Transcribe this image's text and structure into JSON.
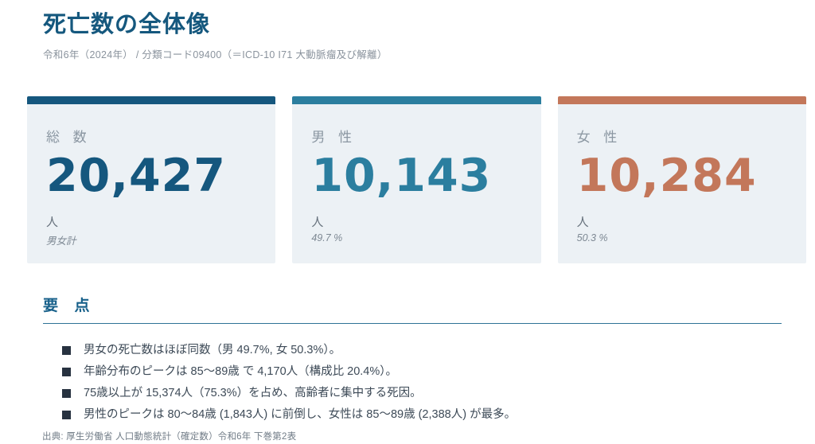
{
  "page": {
    "title": "死亡数の全体像",
    "subtitle": "令和6年（2024年） / 分類コード09400（＝ICD-10 I71 大動脈瘤及び解離）",
    "source": "出典: 厚生労働省 人口動態統計（確定数）令和6年 下巻第2表"
  },
  "theme": {
    "title_color": "#15587E",
    "rule_color": "#2E7396",
    "card_background": "#ECF1F5",
    "bullet_color": "#273240"
  },
  "cards": [
    {
      "label": "総 数",
      "value": "20,427",
      "unit": "人",
      "note": "男女計",
      "accent": "#15577E"
    },
    {
      "label": "男 性",
      "value": "10,143",
      "unit": "人",
      "note": "49.7 %",
      "accent": "#2B7E9F"
    },
    {
      "label": "女 性",
      "value": "10,284",
      "unit": "人",
      "note": "50.3 %",
      "accent": "#C3775A"
    }
  ],
  "key_points": {
    "heading": "要 点",
    "items": [
      "男女の死亡数はほぼ同数（男 49.7%, 女 50.3%）。",
      "年齢分布のピークは 85〜89歳 で 4,170人（構成比 20.4%）。",
      "75歳以上が 15,374人（75.3%）を占め、高齢者に集中する死因。",
      "男性のピークは 80〜84歳 (1,843人) に前倒し、女性は 85〜89歳 (2,388人) が最多。"
    ]
  }
}
